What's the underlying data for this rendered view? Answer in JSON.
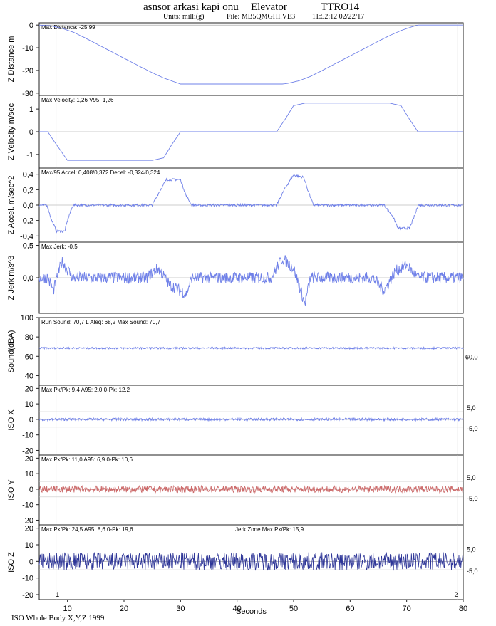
{
  "header": {
    "title": "asnsor arkasi kapi onu",
    "category": "Elevator",
    "code": "TTRO14",
    "units": "Units: milli(g)",
    "file": "File: MB5QMGHI.VE3",
    "datetime": "11:52:12 02/22/17"
  },
  "footer": {
    "note": "ISO Whole Body X,Y,Z  1999"
  },
  "colors": {
    "blue_trace": "#6f80e8",
    "red_trace": "#cc6b6b",
    "navy_trace": "#2d3597",
    "teal_trace": "#3cb6a6",
    "frame": "#222222"
  },
  "chart_data": {
    "type": "line",
    "shared_x": {
      "label": "Seconds",
      "range": [
        5,
        80
      ],
      "ticks": [
        10,
        20,
        30,
        40,
        50,
        60,
        70,
        80
      ],
      "markers": [
        {
          "x": 8,
          "label": "1"
        },
        {
          "x": 79,
          "label": "2"
        }
      ]
    },
    "panels": [
      {
        "ylabel": "Z Distance m",
        "annotation": "Max Distance: -25,99",
        "ylim": [
          -31,
          1
        ],
        "ticks": [
          {
            "v": 0,
            "label": "0"
          },
          {
            "v": -10,
            "label": "-10"
          },
          {
            "v": -20,
            "label": "-20"
          },
          {
            "v": -30,
            "label": "-30"
          }
        ],
        "series": [
          {
            "x": [
              5,
              7,
              9,
              11,
              13,
              15,
              17,
              19,
              21,
              23,
              25,
              27,
              29,
              30,
              48,
              49,
              51,
              53,
              55,
              57,
              59,
              61,
              63,
              65,
              67,
              69,
              71,
              72,
              80
            ],
            "y": [
              0,
              -0.3,
              -1.4,
              -3.1,
              -5.5,
              -8.1,
              -10.7,
              -13.3,
              -15.9,
              -18.5,
              -21.0,
              -23.3,
              -25.1,
              -25.99,
              -25.99,
              -25.7,
              -24.5,
              -22.6,
              -20.1,
              -17.5,
              -14.9,
              -12.3,
              -9.7,
              -7.1,
              -4.6,
              -2.4,
              -0.7,
              0,
              0
            ],
            "color": "blue_trace"
          }
        ]
      },
      {
        "ylabel": "Z Velocity m/sec",
        "annotation": "Max Velocity: 1,26  V95: 1,26",
        "ylim": [
          -1.6,
          1.6
        ],
        "ticks": [
          {
            "v": 1,
            "label": "1"
          },
          {
            "v": 0,
            "label": "0"
          },
          {
            "v": -1,
            "label": "-1"
          }
        ],
        "series": [
          {
            "x": [
              5,
              6.5,
              8,
              10,
              25,
              27,
              28.5,
              30,
              47,
              48.5,
              50,
              52,
              67,
              69,
              70.5,
              72,
              80
            ],
            "y": [
              0,
              0,
              -0.55,
              -1.26,
              -1.26,
              -1.15,
              -0.55,
              0,
              0,
              0.55,
              1.15,
              1.26,
              1.26,
              1.15,
              0.55,
              0,
              0
            ],
            "color": "blue_trace"
          }
        ]
      },
      {
        "ylabel": "Z Accel. m/sec^2",
        "annotation": "Max/95 Accel: 0,408/0,372 Decel: -0,324/0,324",
        "ylim": [
          -0.48,
          0.48
        ],
        "ticks": [
          {
            "v": 0.4,
            "label": "0,4"
          },
          {
            "v": 0.2,
            "label": "0,2"
          },
          {
            "v": 0,
            "label": "0,0"
          },
          {
            "v": -0.2,
            "label": "-0,2"
          },
          {
            "v": -0.4,
            "label": "-0,4"
          }
        ],
        "series": [
          {
            "x": [
              5,
              6.4,
              7.2,
              8.1,
              9.5,
              10.2,
              11,
              25,
              26,
              27.5,
              30,
              31,
              32,
              47,
              48.5,
              50,
              51.8,
              52.5,
              53.5,
              66,
              67.5,
              68.5,
              70.5,
              71.5,
              72,
              80
            ],
            "y": [
              0,
              0,
              -0.2,
              -0.34,
              -0.34,
              -0.15,
              0,
              0,
              0.14,
              0.33,
              0.33,
              0.12,
              0,
              0,
              0.22,
              0.39,
              0.36,
              0.2,
              0,
              0,
              -0.14,
              -0.3,
              -0.3,
              -0.12,
              0,
              0
            ],
            "color": "blue_trace",
            "noise": 0.015
          }
        ]
      },
      {
        "ylabel": "Z Jerk m/s^3",
        "annotation": "Max Jerk: -0,5",
        "ylim": [
          -0.55,
          0.55
        ],
        "ticks": [
          {
            "v": 0.5,
            "label": "0,5"
          },
          {
            "v": 0,
            "label": "0,0"
          }
        ],
        "series": [
          {
            "x": [
              5,
              6.5,
              7.5,
              9,
              11,
              24,
              26,
              28,
              31,
              32,
              46,
              48,
              50,
              52,
              53,
              64,
              66,
              68,
              70,
              72,
              80
            ],
            "y": [
              0,
              0,
              -0.2,
              0.25,
              0,
              0,
              0.15,
              -0.1,
              -0.25,
              0,
              0,
              0.3,
              0.15,
              -0.4,
              0,
              0,
              -0.2,
              0.1,
              0.2,
              0,
              0
            ],
            "color": "blue_trace",
            "noise": 0.09
          }
        ]
      },
      {
        "ylabel": "Sound(dBA)",
        "annotation": "Run Sound: 70,7 L Aleq: 68,2 Max Sound: 70,7",
        "right_label": "60,0",
        "ylim": [
          30,
          100
        ],
        "ticks": [
          {
            "v": 100,
            "label": "100"
          },
          {
            "v": 80,
            "label": "80"
          },
          {
            "v": 60,
            "label": "60"
          },
          {
            "v": 40,
            "label": "40"
          }
        ],
        "series": [
          {
            "x": [
              5,
              80
            ],
            "y": [
              68.5,
              68.5
            ],
            "color": "blue_trace",
            "noise": 0.9
          }
        ]
      },
      {
        "ylabel": "ISO X",
        "annotation": "Max Pk/Pk: 9,4  A95: 2,0  0-Pk: 12,2",
        "right_labels": [
          "5,0",
          "-5,0"
        ],
        "ylim": [
          -23,
          22
        ],
        "ticks": [
          {
            "v": 20,
            "label": "20"
          },
          {
            "v": 10,
            "label": "10"
          },
          {
            "v": 0,
            "label": "0"
          },
          {
            "v": -10,
            "label": "-10"
          },
          {
            "v": -20,
            "label": "-20"
          }
        ],
        "series": [
          {
            "x": [
              5,
              80
            ],
            "y": [
              0,
              0
            ],
            "color": "blue_trace",
            "noise": 0.8
          }
        ]
      },
      {
        "ylabel": "ISO Y",
        "annotation": "Max Pk/Pk: 11,0  A95: 6,9  0-Pk: 10,6",
        "right_labels": [
          "5,0",
          "-5,0"
        ],
        "ylim": [
          -23,
          22
        ],
        "ticks": [
          {
            "v": 20,
            "label": "20"
          },
          {
            "v": 10,
            "label": "10"
          },
          {
            "v": 0,
            "label": "0"
          },
          {
            "v": -10,
            "label": "-10"
          },
          {
            "v": -20,
            "label": "-20"
          }
        ],
        "series": [
          {
            "x": [
              5,
              80
            ],
            "y": [
              0,
              0
            ],
            "color": "red_trace",
            "noise": 2.2
          }
        ]
      },
      {
        "ylabel": "ISO Z",
        "annotation": "Max Pk/Pk: 24,5  A95: 8,6  0-Pk: 19,6",
        "annotation2": "Jerk Zone Max Pk/Pk: 15,9",
        "right_labels": [
          "5,0",
          "-5,0"
        ],
        "ylim": [
          -23,
          22
        ],
        "ticks": [
          {
            "v": 20,
            "label": "20"
          },
          {
            "v": 10,
            "label": "10"
          },
          {
            "v": 0,
            "label": "0"
          },
          {
            "v": -10,
            "label": "-10"
          },
          {
            "v": -20,
            "label": "-20"
          }
        ],
        "series": [
          {
            "x": [
              5,
              80
            ],
            "y": [
              0,
              0
            ],
            "color": "navy_trace",
            "noise": 5.5
          }
        ]
      }
    ]
  }
}
